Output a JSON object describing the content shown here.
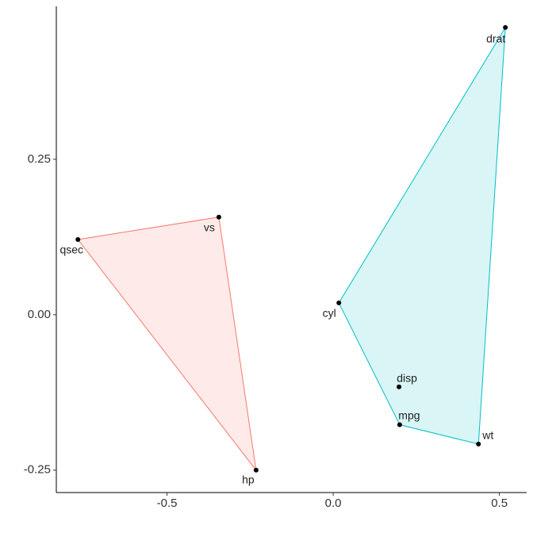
{
  "chart_data": {
    "type": "scatter",
    "xlim": [
      -0.833,
      0.582
    ],
    "ylim": [
      -0.286,
      0.496
    ],
    "xticks": [
      -0.5,
      {
        "value": 0,
        "label": "0.0"
      },
      0.5
    ],
    "yticks": [
      -0.25,
      {
        "value": 0,
        "label": "0.00"
      },
      0.25
    ],
    "grid": false,
    "series": [
      {
        "color": "#f8766d",
        "labels": [
          "vs",
          "qsec",
          "hp"
        ],
        "x": [
          -0.344,
          -0.768,
          -0.232
        ],
        "values": [
          0.157,
          0.121,
          -0.25
        ]
      },
      {
        "color": "#00bfc4",
        "labels": [
          "drat",
          "cyl",
          "disp",
          "mpg",
          "wt"
        ],
        "x": [
          0.518,
          0.017,
          0.198,
          0.2,
          0.437
        ],
        "values": [
          0.462,
          0.019,
          -0.116,
          -0.177,
          -0.208
        ]
      }
    ]
  }
}
